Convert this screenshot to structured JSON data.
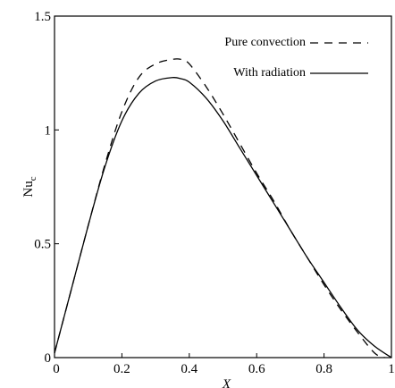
{
  "chart_data": {
    "type": "line",
    "title": "",
    "xlabel": "X",
    "ylabel_main": "Nu",
    "ylabel_sub": "c",
    "xlim": [
      0,
      1
    ],
    "ylim": [
      0,
      1.5
    ],
    "xticks": [
      0,
      0.2,
      0.4,
      0.6,
      0.8,
      1
    ],
    "xtick_labels": [
      "0",
      "0.2",
      "0.4",
      "0.6",
      "0.8",
      "1"
    ],
    "yticks": [
      0,
      0.5,
      1,
      1.5
    ],
    "ytick_labels": [
      "0",
      "0.5",
      "1",
      "1.5"
    ],
    "grid": false,
    "legend_position": "top-right",
    "series": [
      {
        "name": "Pure convection",
        "style": "dashed",
        "color": "#000000",
        "x": [
          0,
          0.05,
          0.1,
          0.15,
          0.2,
          0.25,
          0.3,
          0.35,
          0.375,
          0.4,
          0.45,
          0.5,
          0.55,
          0.6,
          0.65,
          0.7,
          0.75,
          0.8,
          0.85,
          0.9,
          0.95,
          0.98
        ],
        "y": [
          0.02,
          0.3,
          0.58,
          0.85,
          1.08,
          1.23,
          1.29,
          1.31,
          1.31,
          1.29,
          1.19,
          1.07,
          0.94,
          0.81,
          0.69,
          0.56,
          0.44,
          0.32,
          0.21,
          0.11,
          0.02,
          0.0
        ]
      },
      {
        "name": "With radiation",
        "style": "solid",
        "color": "#000000",
        "x": [
          0,
          0.05,
          0.1,
          0.15,
          0.2,
          0.25,
          0.3,
          0.35,
          0.375,
          0.4,
          0.45,
          0.5,
          0.55,
          0.6,
          0.65,
          0.7,
          0.75,
          0.8,
          0.85,
          0.9,
          0.95,
          1.0
        ],
        "y": [
          0.02,
          0.3,
          0.58,
          0.84,
          1.04,
          1.16,
          1.215,
          1.23,
          1.225,
          1.21,
          1.14,
          1.04,
          0.92,
          0.8,
          0.68,
          0.56,
          0.44,
          0.33,
          0.22,
          0.12,
          0.05,
          0.0
        ]
      }
    ]
  }
}
